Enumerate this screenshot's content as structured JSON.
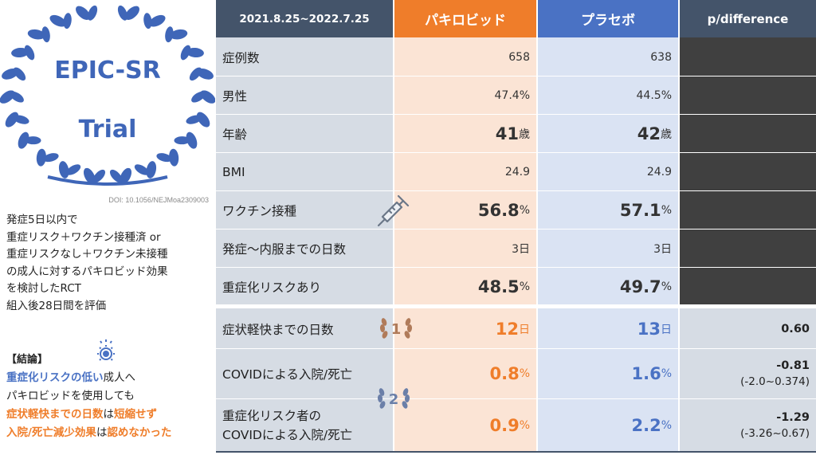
{
  "badge": {
    "line1": "EPIC-SR",
    "line2": "Trial"
  },
  "doi": "DOI: 10.1056/NEJMoa2309003",
  "description": [
    "発症5日以内で",
    "重症リスク＋ワクチン接種済 or",
    "重症リスクなし＋ワクチン未接種",
    "の成人に対するパキロビッド効果",
    "を検討したRCT",
    "組入後28日間を評価"
  ],
  "conclusion": {
    "heading": "【結論】",
    "line1_highlight": "重症化リスクの低い",
    "line1_rest": "成人へ",
    "line2": "パキロビッドを使用しても",
    "line3_a": "症状軽快までの日数",
    "line3_b": "は",
    "line3_c": "短縮せず",
    "line4_a": "入院/死亡減少効果",
    "line4_b": "は",
    "line4_c": "認めなかった"
  },
  "table": {
    "headers": {
      "date_range": "2021.8.25~2022.7.25",
      "drug": "パキロビッド",
      "placebo": "プラセボ",
      "pdiff": "p/difference"
    },
    "rows": [
      {
        "label": "症例数",
        "drug": "658",
        "placebo": "638"
      },
      {
        "label": "男性",
        "drug": "47.4%",
        "placebo": "44.5%"
      },
      {
        "label": "年齢",
        "drug_num": "41",
        "drug_unit": "歳",
        "placebo_num": "42",
        "placebo_unit": "歳"
      },
      {
        "label": "BMI",
        "drug": "24.9",
        "placebo": "24.9"
      },
      {
        "label": "ワクチン接種",
        "drug_num": "56.8",
        "drug_unit": "%",
        "placebo_num": "57.1",
        "placebo_unit": "%"
      },
      {
        "label": "発症〜内服までの日数",
        "drug": "3日",
        "placebo": "3日"
      },
      {
        "label": "重症化リスクあり",
        "drug_num": "48.5",
        "drug_unit": "%",
        "placebo_num": "49.7",
        "placebo_unit": "%"
      }
    ],
    "outcomes": [
      {
        "label": "症状軽快までの日数",
        "drug_num": "12",
        "drug_unit": "日",
        "placebo_num": "13",
        "placebo_unit": "日",
        "p": "0.60"
      },
      {
        "label": "COVIDによる入院/死亡",
        "drug_num": "0.8",
        "drug_unit": "%",
        "placebo_num": "1.6",
        "placebo_unit": "%",
        "diff": "-0.81",
        "ci": "(-2.0~0.374)"
      },
      {
        "label_line1": "重症化リスク者の",
        "label_line2": "COVIDによる入院/死亡",
        "drug_num": "0.9",
        "drug_unit": "%",
        "placebo_num": "2.2",
        "placebo_unit": "%",
        "diff": "-1.29",
        "ci": "(-3.26~0.67)"
      }
    ],
    "medals": [
      "1",
      "2"
    ]
  },
  "colors": {
    "drug": "#ef7d2a",
    "placebo": "#4a72c4",
    "header_dark": "#44546a",
    "wreath": "#3f66b8"
  },
  "icons": [
    "laurel-wreath-icon",
    "syringe-icon",
    "gear-icon",
    "medal-icon"
  ]
}
